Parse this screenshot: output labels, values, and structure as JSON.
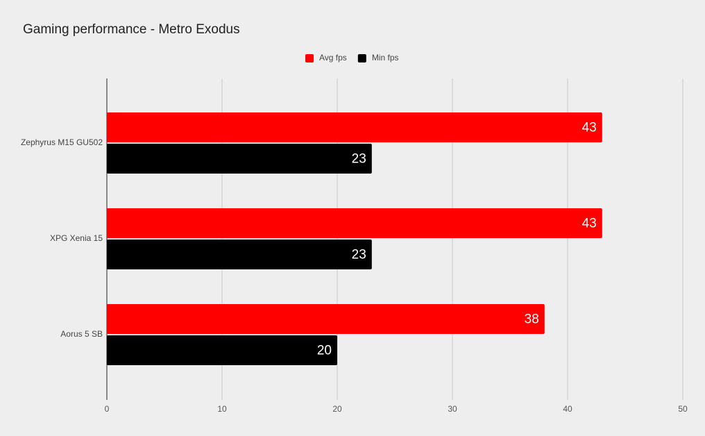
{
  "chart_data": {
    "type": "bar",
    "orientation": "horizontal",
    "title": "Gaming performance - Metro Exodus",
    "categories": [
      "Zephyrus M15 GU502",
      "XPG Xenia 15",
      "Aorus 5 SB"
    ],
    "series": [
      {
        "name": "Avg fps",
        "color": "#ff0000",
        "values": [
          43,
          43,
          38
        ]
      },
      {
        "name": "Min fps",
        "color": "#000000",
        "values": [
          23,
          23,
          20
        ]
      }
    ],
    "xlim": [
      0,
      50
    ],
    "xticks": [
      0,
      10,
      20,
      30,
      40,
      50
    ],
    "grid": true,
    "legend": "top"
  }
}
